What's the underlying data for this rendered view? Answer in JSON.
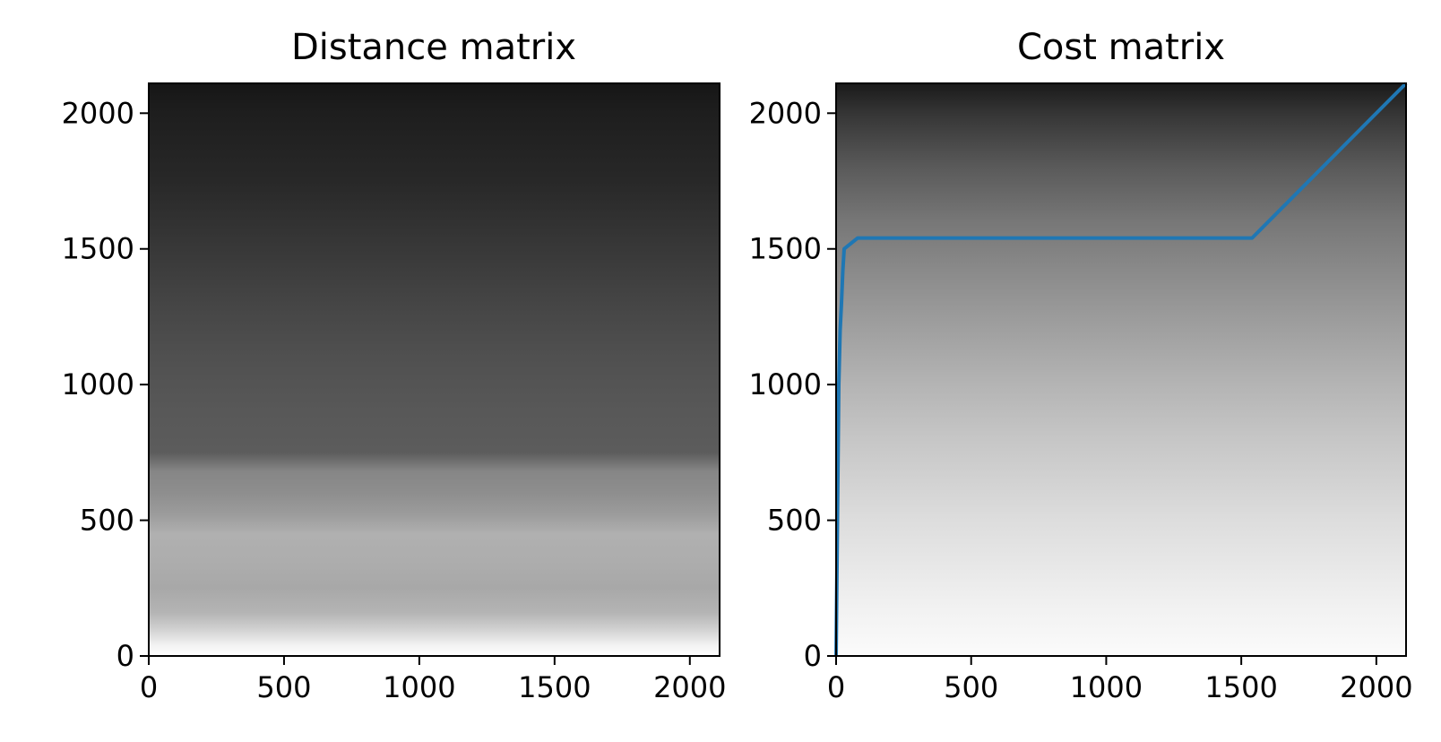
{
  "chart_data": [
    {
      "type": "heatmap",
      "title": "Distance matrix",
      "xlabel": "",
      "ylabel": "",
      "xlim": [
        0,
        2110
      ],
      "ylim": [
        0,
        2110
      ],
      "xticks": [
        0,
        500,
        1000,
        1500,
        2000
      ],
      "yticks": [
        0,
        500,
        1000,
        1500,
        2000
      ],
      "colormap": "gray",
      "grayscale_profile": {
        "y": [
          0,
          40,
          100,
          160,
          250,
          350,
          450,
          520,
          600,
          680,
          750,
          900,
          1100,
          1300,
          1500,
          1750,
          2000,
          2110
        ],
        "gray": [
          "#ffffff",
          "#f2f2f2",
          "#d0d0d0",
          "#b4b4b4",
          "#a8a8a8",
          "#adadad",
          "#b0b0b0",
          "#9c9c9c",
          "#8e8e8e",
          "#868686",
          "#5c5c5c",
          "#585858",
          "#505050",
          "#454545",
          "#383838",
          "#282828",
          "#1e1e1e",
          "#161616"
        ]
      }
    },
    {
      "type": "heatmap",
      "title": "Cost matrix",
      "xlabel": "",
      "ylabel": "",
      "xlim": [
        0,
        2110
      ],
      "ylim": [
        0,
        2110
      ],
      "xticks": [
        0,
        500,
        1000,
        1500,
        2000
      ],
      "yticks": [
        0,
        500,
        1000,
        1500,
        2000
      ],
      "colormap": "gray",
      "grayscale_profile": {
        "y": [
          0,
          200,
          500,
          800,
          1000,
          1200,
          1400,
          1600,
          1800,
          2000,
          2110
        ],
        "gray": [
          "#fbfbfb",
          "#f0f0f0",
          "#dddddd",
          "#c6c6c6",
          "#b4b4b4",
          "#a0a0a0",
          "#8c8c8c",
          "#777777",
          "#5a5a5a",
          "#353535",
          "#1a1a1a"
        ]
      },
      "series": [
        {
          "type": "line",
          "color": "#1f77b4",
          "x": [
            0,
            5,
            10,
            15,
            20,
            25,
            30,
            80,
            1540,
            2110
          ],
          "y": [
            0,
            500,
            1000,
            1200,
            1300,
            1420,
            1500,
            1540,
            1540,
            2110
          ]
        }
      ]
    }
  ]
}
